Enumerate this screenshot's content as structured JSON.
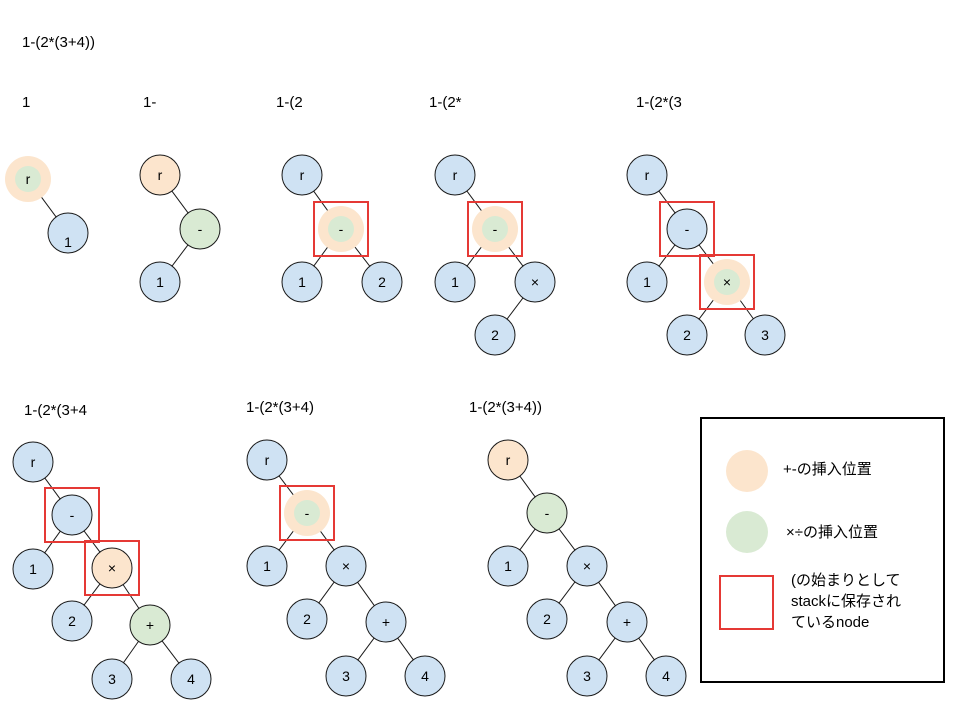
{
  "expression": "1-(2*(3+4))",
  "colors": {
    "node": "#cfe2f3",
    "node_stroke": "#1a1a1a",
    "plus_minus": "#fce5cd",
    "times_div": "#d9ead3",
    "stack_box": "#e53935"
  },
  "steps": [
    {
      "label": "1",
      "nodes": [
        {
          "id": "r",
          "text": "r",
          "fill": "blue",
          "halo": "orange",
          "inner": "green"
        },
        {
          "id": "n1",
          "text": "1",
          "fill": "blue"
        }
      ],
      "edges": [
        [
          "r",
          "n1"
        ]
      ]
    },
    {
      "label": "1-",
      "nodes": [
        {
          "id": "r",
          "text": "r",
          "fill": "orange"
        },
        {
          "id": "m",
          "text": "-",
          "fill": "green"
        },
        {
          "id": "n1",
          "text": "1",
          "fill": "blue"
        }
      ],
      "edges": [
        [
          "r",
          "m"
        ],
        [
          "m",
          "n1"
        ]
      ]
    },
    {
      "label": "1-(2",
      "nodes": [
        {
          "id": "r",
          "text": "r",
          "fill": "blue"
        },
        {
          "id": "m",
          "text": "-",
          "fill": "blue",
          "halo": "orange",
          "inner": "green",
          "box": true
        },
        {
          "id": "n1",
          "text": "1",
          "fill": "blue"
        },
        {
          "id": "n2",
          "text": "2",
          "fill": "blue"
        }
      ],
      "edges": [
        [
          "r",
          "m"
        ],
        [
          "m",
          "n1"
        ],
        [
          "m",
          "n2"
        ]
      ]
    },
    {
      "label": "1-(2*",
      "nodes": [
        {
          "id": "r",
          "text": "r",
          "fill": "blue"
        },
        {
          "id": "m",
          "text": "-",
          "fill": "blue",
          "halo": "orange",
          "inner": "green",
          "box": true
        },
        {
          "id": "n1",
          "text": "1",
          "fill": "blue"
        },
        {
          "id": "t",
          "text": "×",
          "fill": "blue"
        },
        {
          "id": "n2",
          "text": "2",
          "fill": "blue"
        }
      ],
      "edges": [
        [
          "r",
          "m"
        ],
        [
          "m",
          "n1"
        ],
        [
          "m",
          "t"
        ],
        [
          "t",
          "n2"
        ]
      ]
    },
    {
      "label": "1-(2*(3",
      "nodes": [
        {
          "id": "r",
          "text": "r",
          "fill": "blue"
        },
        {
          "id": "m",
          "text": "-",
          "fill": "blue",
          "box": true
        },
        {
          "id": "n1",
          "text": "1",
          "fill": "blue"
        },
        {
          "id": "t",
          "text": "×",
          "fill": "blue",
          "halo": "orange",
          "inner": "green",
          "box": true
        },
        {
          "id": "n2",
          "text": "2",
          "fill": "blue"
        },
        {
          "id": "n3",
          "text": "3",
          "fill": "blue"
        }
      ],
      "edges": [
        [
          "r",
          "m"
        ],
        [
          "m",
          "n1"
        ],
        [
          "m",
          "t"
        ],
        [
          "t",
          "n2"
        ],
        [
          "t",
          "n3"
        ]
      ]
    },
    {
      "label": "1-(2*(3+4",
      "nodes": [
        {
          "id": "r",
          "text": "r",
          "fill": "blue"
        },
        {
          "id": "m",
          "text": "-",
          "fill": "blue",
          "box": true
        },
        {
          "id": "n1",
          "text": "1",
          "fill": "blue"
        },
        {
          "id": "t",
          "text": "×",
          "fill": "orange",
          "box": true
        },
        {
          "id": "n2",
          "text": "2",
          "fill": "blue"
        },
        {
          "id": "p",
          "text": "+",
          "fill": "green"
        },
        {
          "id": "n3",
          "text": "3",
          "fill": "blue"
        },
        {
          "id": "n4",
          "text": "4",
          "fill": "blue"
        }
      ],
      "edges": [
        [
          "r",
          "m"
        ],
        [
          "m",
          "n1"
        ],
        [
          "m",
          "t"
        ],
        [
          "t",
          "n2"
        ],
        [
          "t",
          "p"
        ],
        [
          "p",
          "n3"
        ],
        [
          "p",
          "n4"
        ]
      ]
    },
    {
      "label": "1-(2*(3+4)",
      "nodes": [
        {
          "id": "r",
          "text": "r",
          "fill": "blue"
        },
        {
          "id": "m",
          "text": "-",
          "fill": "blue",
          "halo": "orange",
          "inner": "green",
          "box": true
        },
        {
          "id": "n1",
          "text": "1",
          "fill": "blue"
        },
        {
          "id": "t",
          "text": "×",
          "fill": "blue"
        },
        {
          "id": "n2",
          "text": "2",
          "fill": "blue"
        },
        {
          "id": "p",
          "text": "+",
          "fill": "blue"
        },
        {
          "id": "n3",
          "text": "3",
          "fill": "blue"
        },
        {
          "id": "n4",
          "text": "4",
          "fill": "blue"
        }
      ],
      "edges": [
        [
          "r",
          "m"
        ],
        [
          "m",
          "n1"
        ],
        [
          "m",
          "t"
        ],
        [
          "t",
          "n2"
        ],
        [
          "t",
          "p"
        ],
        [
          "p",
          "n3"
        ],
        [
          "p",
          "n4"
        ]
      ]
    },
    {
      "label": "1-(2*(3+4))",
      "nodes": [
        {
          "id": "r",
          "text": "r",
          "fill": "orange"
        },
        {
          "id": "m",
          "text": "-",
          "fill": "green"
        },
        {
          "id": "n1",
          "text": "1",
          "fill": "blue"
        },
        {
          "id": "t",
          "text": "×",
          "fill": "blue"
        },
        {
          "id": "n2",
          "text": "2",
          "fill": "blue"
        },
        {
          "id": "p",
          "text": "+",
          "fill": "blue"
        },
        {
          "id": "n3",
          "text": "3",
          "fill": "blue"
        },
        {
          "id": "n4",
          "text": "4",
          "fill": "blue"
        }
      ],
      "edges": [
        [
          "r",
          "m"
        ],
        [
          "m",
          "n1"
        ],
        [
          "m",
          "t"
        ],
        [
          "t",
          "n2"
        ],
        [
          "t",
          "p"
        ],
        [
          "p",
          "n3"
        ],
        [
          "p",
          "n4"
        ]
      ]
    }
  ],
  "legend": {
    "plus_minus_label": "+-の挿入位置",
    "times_div_label": "×÷の挿入位置",
    "stack_label": "(の始まりとして\nstackに保存され\nているnode"
  }
}
